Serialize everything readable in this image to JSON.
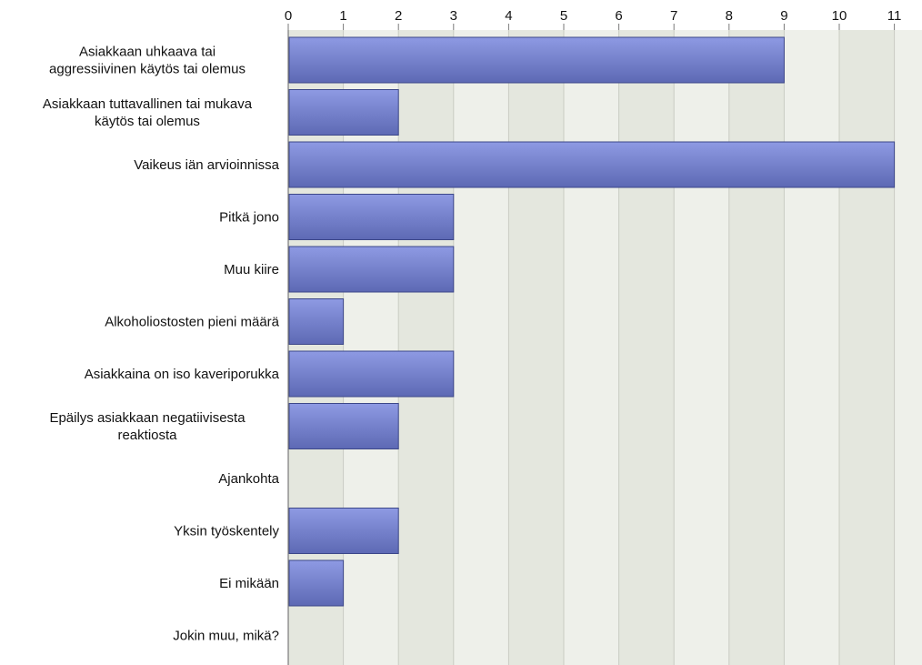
{
  "chart_data": {
    "type": "bar",
    "orientation": "horizontal",
    "categories": [
      [
        "Asiakkaan uhkaava tai",
        "aggressiivinen käytös tai olemus"
      ],
      [
        "Asiakkaan tuttavallinen tai mukava",
        "käytös tai olemus"
      ],
      [
        "Vaikeus iän arvioinnissa"
      ],
      [
        "Pitkä jono"
      ],
      [
        "Muu kiire"
      ],
      [
        "Alkoholiostosten pieni määrä"
      ],
      [
        "Asiakkaina on iso kaveriporukka"
      ],
      [
        "Epäilys asiakkaan negatiivisesta",
        "reaktiosta"
      ],
      [
        "Ajankohta"
      ],
      [
        "Yksin työskentely"
      ],
      [
        "Ei mikään"
      ],
      [
        "Jokin muu, mikä?"
      ]
    ],
    "values": [
      9,
      2,
      11,
      3,
      3,
      1,
      3,
      2,
      0,
      2,
      1,
      0
    ],
    "xlim": [
      0,
      11
    ],
    "xticks": [
      0,
      1,
      2,
      3,
      4,
      5,
      6,
      7,
      8,
      9,
      10,
      11
    ],
    "grid": true,
    "tick_position": "top",
    "colors": {
      "bar_light": "#8e9ae3",
      "bar_dark": "#5d69b4",
      "bar_edge": "#3c4789",
      "band_light": "#eef0ea",
      "band_dark": "#e4e7de",
      "grid": "#c9ccc3",
      "axis": "#7a7a7a"
    }
  }
}
